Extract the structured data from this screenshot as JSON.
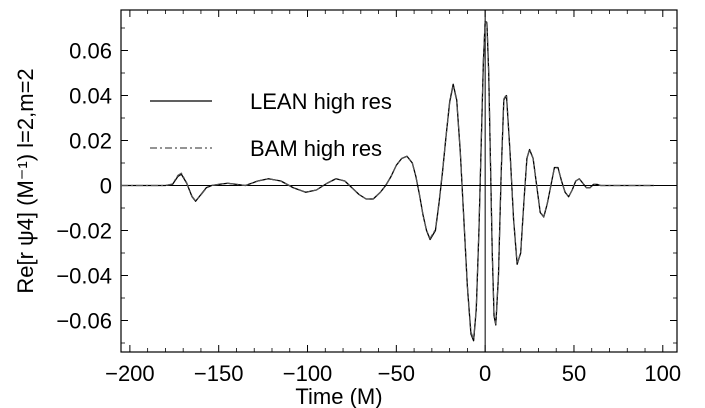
{
  "chart_data": {
    "type": "line",
    "xlabel": "Time (M)",
    "ylabel": "Re[r ψ4] (M⁻¹) l=2,m=2",
    "xlim": [
      -205,
      108
    ],
    "ylim": [
      -0.074,
      0.078
    ],
    "x_ticks": [
      -200,
      -150,
      -100,
      -50,
      0,
      50,
      100
    ],
    "x_tick_labels": [
      "−200",
      "−150",
      "−100",
      "−50",
      "0",
      "50",
      "100"
    ],
    "y_ticks": [
      0.06,
      0.04,
      0.02,
      0,
      -0.02,
      -0.04,
      -0.06
    ],
    "y_tick_labels": [
      "0.06",
      "0.04",
      "0.02",
      "0",
      "−0.02",
      "−0.04",
      "−0.06"
    ],
    "grid": false,
    "zero_lines": true,
    "legend": "upper-left",
    "series": [
      {
        "name": "LEAN high res",
        "style": "solid",
        "color": "#000000",
        "x": [
          -205,
          -180,
          -176,
          -173,
          -171,
          -168,
          -165,
          -163,
          -160,
          -157,
          -154,
          -150,
          -145,
          -140,
          -135,
          -128,
          -122,
          -115,
          -108,
          -101,
          -95,
          -89,
          -84,
          -79,
          -75,
          -71,
          -67,
          -63,
          -59,
          -56,
          -53,
          -50,
          -47,
          -44,
          -41,
          -39,
          -37,
          -35,
          -33,
          -31,
          -28,
          -26,
          -24,
          -22,
          -20,
          -18,
          -16,
          -14,
          -12,
          -10,
          -8,
          -6.5,
          -5,
          -3.5,
          -2,
          -1,
          0,
          1,
          2,
          3,
          4,
          5,
          6,
          7.5,
          9,
          10.5,
          12,
          14,
          16,
          18,
          20,
          22,
          23.5,
          25,
          27,
          29,
          31,
          33,
          35,
          37,
          39,
          41,
          43,
          45,
          47,
          49,
          51,
          53,
          55,
          57,
          59,
          61,
          63,
          65,
          70,
          80,
          90,
          95
        ],
        "y": [
          0,
          0,
          0.0005,
          0.004,
          0.005,
          0.001,
          -0.005,
          -0.007,
          -0.004,
          -0.001,
          0,
          0.0005,
          0.001,
          0.0005,
          0,
          0.002,
          0.003,
          0.002,
          -0.001,
          -0.003,
          -0.002,
          0.001,
          0.003,
          0.002,
          -0.001,
          -0.004,
          -0.006,
          -0.006,
          -0.003,
          0,
          0.004,
          0.009,
          0.012,
          0.013,
          0.01,
          0.004,
          -0.004,
          -0.013,
          -0.02,
          -0.024,
          -0.02,
          -0.008,
          0.006,
          0.022,
          0.037,
          0.045,
          0.038,
          0.015,
          -0.015,
          -0.045,
          -0.066,
          -0.069,
          -0.055,
          -0.02,
          0.025,
          0.055,
          0.073,
          0.072,
          0.05,
          0.01,
          -0.03,
          -0.058,
          -0.062,
          -0.04,
          0.005,
          0.038,
          0.04,
          0.015,
          -0.015,
          -0.035,
          -0.03,
          -0.005,
          0.012,
          0.016,
          0.012,
          0,
          -0.012,
          -0.014,
          -0.008,
          0,
          0.008,
          0.008,
          0.002,
          -0.003,
          -0.005,
          -0.002,
          0.002,
          0.003,
          0.001,
          -0.001,
          -0.001,
          0.0005,
          0.0005,
          0,
          0,
          0,
          0,
          0
        ]
      },
      {
        "name": "BAM high res",
        "style": "dashdot",
        "color": "#555555",
        "x": [
          -205,
          -180,
          -176,
          -173,
          -171,
          -168,
          -165,
          -163,
          -160,
          -157,
          -154,
          -150,
          -145,
          -140,
          -135,
          -128,
          -122,
          -115,
          -108,
          -101,
          -95,
          -89,
          -84,
          -79,
          -75,
          -71,
          -67,
          -63,
          -59,
          -56,
          -53,
          -50,
          -47,
          -44,
          -41,
          -39,
          -37,
          -35,
          -33,
          -31,
          -28,
          -26,
          -24,
          -22,
          -20,
          -18,
          -16,
          -14,
          -12,
          -10,
          -8,
          -6.5,
          -5,
          -3.5,
          -2,
          -1,
          0,
          1,
          2,
          3,
          4,
          5,
          6,
          7.5,
          9,
          10.5,
          12,
          14,
          16,
          18,
          20,
          22,
          23.5,
          25,
          27,
          29,
          31,
          33,
          35,
          37,
          39,
          41,
          43,
          45,
          47,
          49,
          51,
          53,
          55,
          57,
          59,
          61,
          63,
          65,
          70,
          80,
          90,
          95
        ],
        "y": [
          0,
          0,
          0.0007,
          0.0045,
          0.0055,
          0.0012,
          -0.0048,
          -0.0068,
          -0.0042,
          -0.0012,
          0,
          0.0005,
          0.001,
          0.0005,
          0,
          0.002,
          0.003,
          0.002,
          -0.001,
          -0.003,
          -0.002,
          0.001,
          0.003,
          0.002,
          -0.001,
          -0.004,
          -0.006,
          -0.006,
          -0.003,
          0,
          0.004,
          0.009,
          0.012,
          0.013,
          0.01,
          0.004,
          -0.004,
          -0.013,
          -0.02,
          -0.0235,
          -0.0195,
          -0.0075,
          0.0065,
          0.022,
          0.0365,
          0.0445,
          0.0375,
          0.015,
          -0.0145,
          -0.0445,
          -0.065,
          -0.0685,
          -0.0545,
          -0.0195,
          0.0255,
          0.0555,
          0.0735,
          0.0725,
          0.0505,
          0.0105,
          -0.0295,
          -0.0575,
          -0.0615,
          -0.0395,
          0.0055,
          0.0385,
          0.0405,
          0.0152,
          -0.0148,
          -0.0348,
          -0.0298,
          -0.0048,
          0.0122,
          0.0162,
          0.0122,
          0,
          -0.0118,
          -0.0138,
          -0.0078,
          0,
          0.0078,
          0.0078,
          0.002,
          -0.003,
          -0.005,
          -0.002,
          0.002,
          0.003,
          0.001,
          -0.001,
          -0.001,
          0.0005,
          0.0005,
          0,
          0,
          0,
          0,
          0
        ]
      }
    ]
  }
}
